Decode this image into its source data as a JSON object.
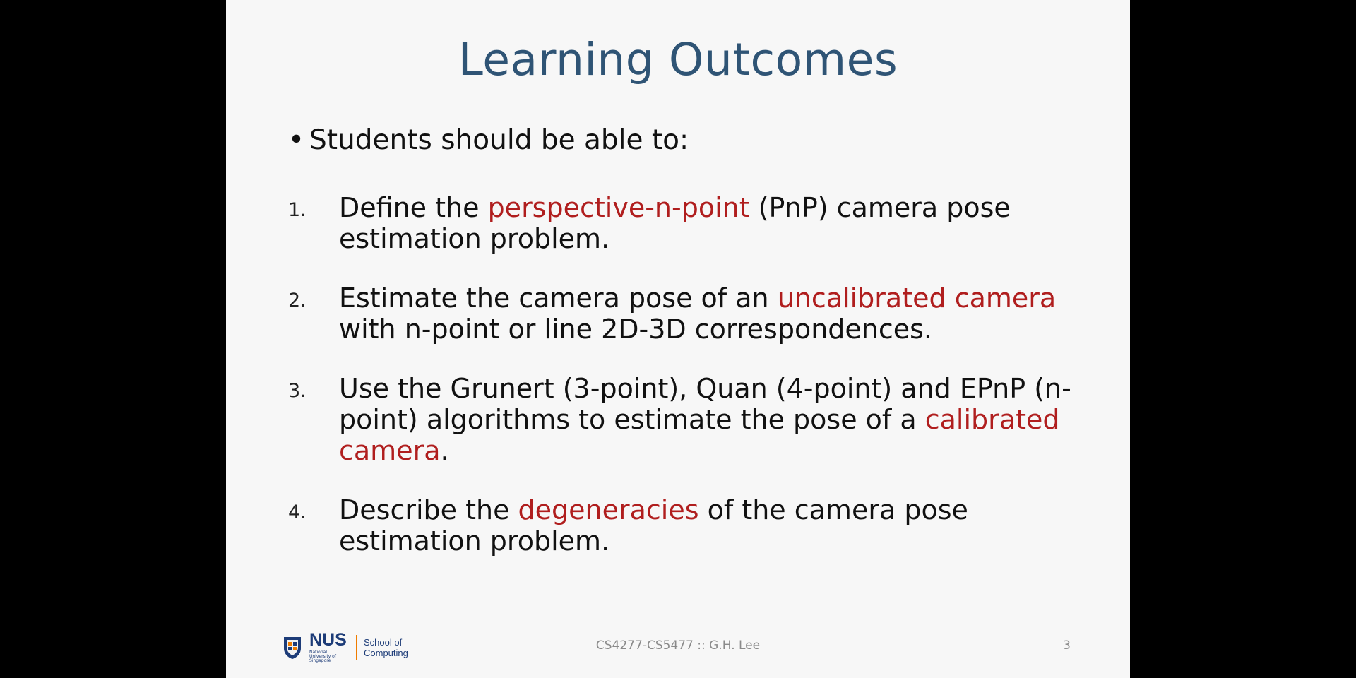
{
  "slide": {
    "title": "Learning Outcomes",
    "intro": "Students should be able to:",
    "bullet_char": "•",
    "outcomes": [
      {
        "number": "1.",
        "segments": [
          {
            "text": "Define the ",
            "red": false
          },
          {
            "text": "perspective-n-point",
            "red": true
          },
          {
            "text": " (PnP) camera pose estimation problem.",
            "red": false
          }
        ]
      },
      {
        "number": "2.",
        "segments": [
          {
            "text": "Estimate the camera pose of an ",
            "red": false
          },
          {
            "text": "uncalibrated camera",
            "red": true
          },
          {
            "text": " with n-point or line 2D-3D correspondences.",
            "red": false
          }
        ]
      },
      {
        "number": "3.",
        "segments": [
          {
            "text": "Use the Grunert (3-point), Quan (4-point) and EPnP (n-point) algorithms to estimate the pose of a ",
            "red": false
          },
          {
            "text": "calibrated camera",
            "red": true
          },
          {
            "text": ".",
            "red": false
          }
        ]
      },
      {
        "number": "4.",
        "segments": [
          {
            "text": "Describe the ",
            "red": false
          },
          {
            "text": "degeneracies",
            "red": true
          },
          {
            "text": " of the camera pose estimation problem.",
            "red": false
          }
        ]
      }
    ]
  },
  "footer": {
    "logo_nus": "NUS",
    "logo_sub": "National University of Singapore",
    "school_line1": "School of",
    "school_line2": "Computing",
    "course": "CS4277-CS5477 :: G.H. Lee",
    "page_number": "3"
  },
  "colors": {
    "title": "#2f5475",
    "highlight": "#b01e1e",
    "text": "#111111"
  }
}
